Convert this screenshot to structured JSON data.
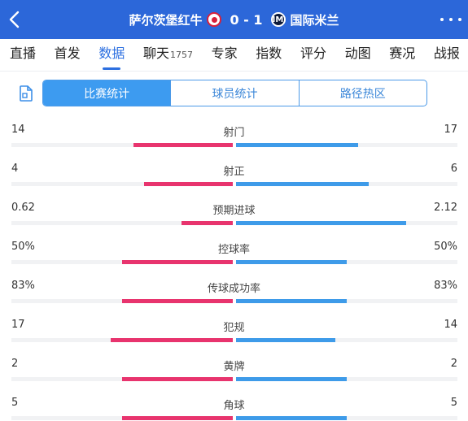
{
  "header": {
    "home_team": "萨尔茨堡红牛",
    "score": "0 - 1",
    "away_team": "国际米兰",
    "away_logo_text": "IM",
    "color": "#2c67d9"
  },
  "tabs": [
    {
      "label": "直播",
      "sub": ""
    },
    {
      "label": "首发",
      "sub": ""
    },
    {
      "label": "数据",
      "sub": "",
      "active": true
    },
    {
      "label": "聊天",
      "sub": "1757"
    },
    {
      "label": "专家",
      "sub": ""
    },
    {
      "label": "指数",
      "sub": ""
    },
    {
      "label": "评分",
      "sub": ""
    },
    {
      "label": "动图",
      "sub": ""
    },
    {
      "label": "赛况",
      "sub": ""
    },
    {
      "label": "战报",
      "sub": ""
    }
  ],
  "segments": [
    "比赛统计",
    "球员统计",
    "路径热区"
  ],
  "colors": {
    "home": "#e8346e",
    "away": "#3e9be9",
    "accent": "#2c6fe0"
  },
  "stats": [
    {
      "label": "射门",
      "home": "14",
      "away": "17",
      "home_share": 0.45,
      "away_share": 0.55
    },
    {
      "label": "射正",
      "home": "4",
      "away": "6",
      "home_share": 0.4,
      "away_share": 0.6
    },
    {
      "label": "预期进球",
      "home": "0.62",
      "away": "2.12",
      "home_share": 0.23,
      "away_share": 0.77
    },
    {
      "label": "控球率",
      "home": "50%",
      "away": "50%",
      "home_share": 0.5,
      "away_share": 0.5
    },
    {
      "label": "传球成功率",
      "home": "83%",
      "away": "83%",
      "home_share": 0.5,
      "away_share": 0.5
    },
    {
      "label": "犯规",
      "home": "17",
      "away": "14",
      "home_share": 0.55,
      "away_share": 0.45
    },
    {
      "label": "黄牌",
      "home": "2",
      "away": "2",
      "home_share": 0.5,
      "away_share": 0.5
    },
    {
      "label": "角球",
      "home": "5",
      "away": "5",
      "home_share": 0.5,
      "away_share": 0.5
    }
  ]
}
